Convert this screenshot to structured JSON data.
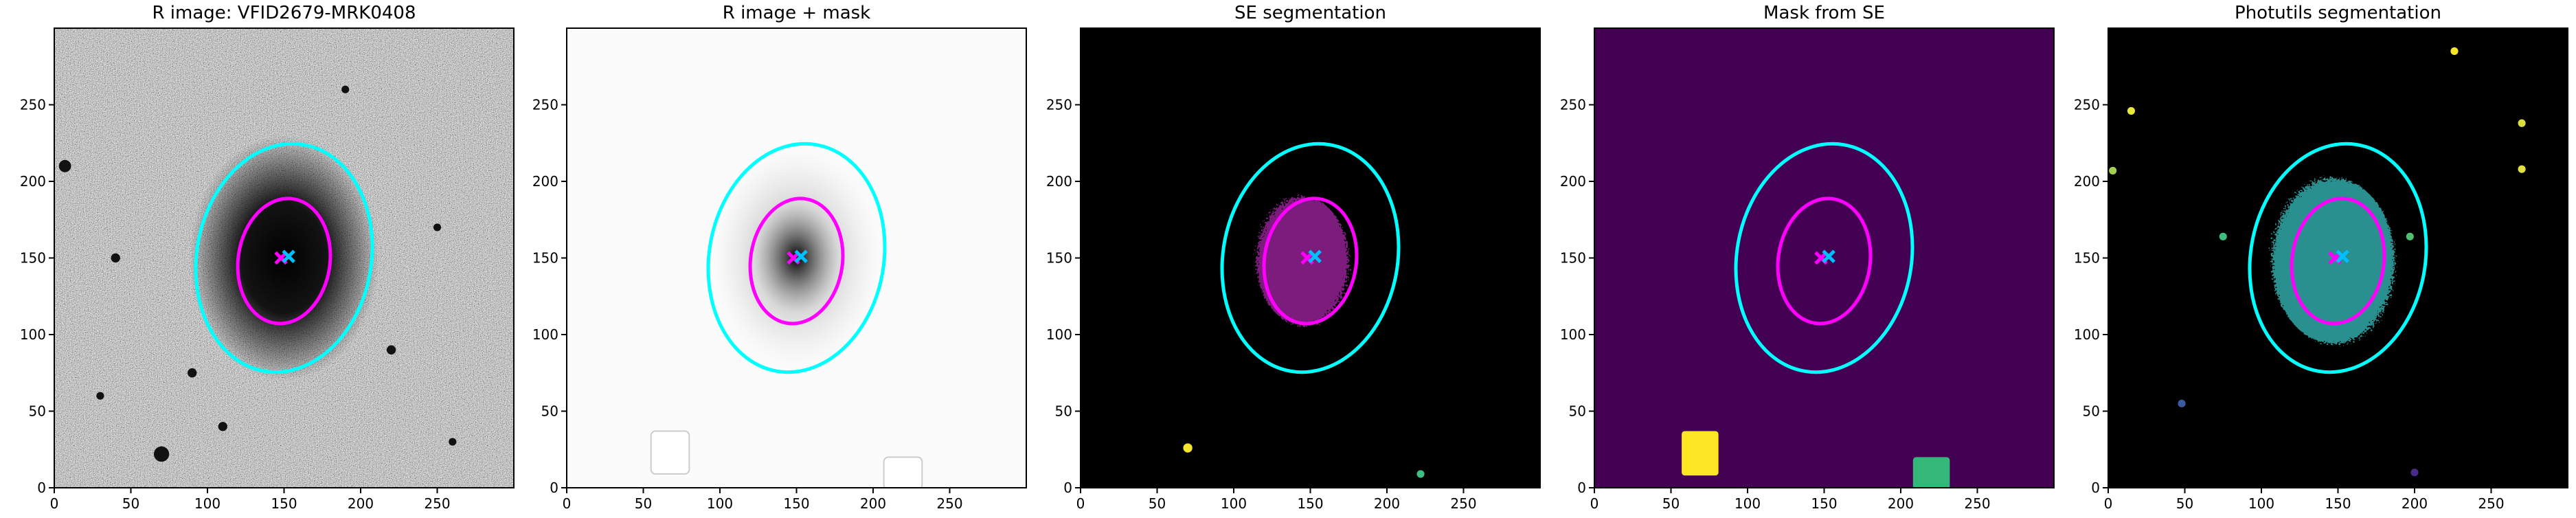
{
  "chart_data": [
    {
      "type": "image",
      "title": "R image: VFID2679-MRK0408",
      "xlim": [
        0,
        300
      ],
      "ylim": [
        0,
        300
      ],
      "xticks": [
        0,
        50,
        100,
        150,
        200,
        250
      ],
      "yticks": [
        0,
        50,
        100,
        150,
        200,
        250
      ],
      "ellipses": [
        {
          "cx": 150,
          "cy": 150,
          "width": 114,
          "height": 150,
          "angle": -10,
          "color": "#00ffff"
        },
        {
          "cx": 150,
          "cy": 148,
          "width": 60,
          "height": 82,
          "angle": -8,
          "color": "#ff00ff"
        }
      ],
      "markers": [
        {
          "x": 148,
          "y": 150,
          "color": "#ff00ff"
        },
        {
          "x": 153,
          "y": 151,
          "color": "#00bfff"
        }
      ]
    },
    {
      "type": "image",
      "title": "R image + mask",
      "xlim": [
        0,
        300
      ],
      "ylim": [
        0,
        300
      ],
      "xticks": [
        0,
        50,
        100,
        150,
        200,
        250
      ],
      "yticks": [
        0,
        50,
        100,
        150,
        200,
        250
      ],
      "ellipses": [
        {
          "cx": 150,
          "cy": 150,
          "width": 114,
          "height": 150,
          "angle": -10,
          "color": "#00ffff"
        },
        {
          "cx": 150,
          "cy": 148,
          "width": 60,
          "height": 82,
          "angle": -8,
          "color": "#ff00ff"
        }
      ],
      "markers": [
        {
          "x": 148,
          "y": 150,
          "color": "#ff00ff"
        },
        {
          "x": 153,
          "y": 151,
          "color": "#00bfff"
        }
      ]
    },
    {
      "type": "image",
      "title": "SE segmentation",
      "xlim": [
        0,
        300
      ],
      "ylim": [
        0,
        300
      ],
      "xticks": [
        0,
        50,
        100,
        150,
        200,
        250
      ],
      "yticks": [
        0,
        50,
        100,
        150,
        200,
        250
      ],
      "ellipses": [
        {
          "cx": 150,
          "cy": 150,
          "width": 114,
          "height": 150,
          "angle": -10,
          "color": "#00ffff"
        },
        {
          "cx": 150,
          "cy": 148,
          "width": 60,
          "height": 82,
          "angle": -8,
          "color": "#ff00ff"
        }
      ],
      "markers": [
        {
          "x": 148,
          "y": 150,
          "color": "#ff00ff"
        },
        {
          "x": 153,
          "y": 151,
          "color": "#00bfff"
        }
      ]
    },
    {
      "type": "image",
      "title": "Mask from SE",
      "xlim": [
        0,
        300
      ],
      "ylim": [
        0,
        300
      ],
      "xticks": [
        0,
        50,
        100,
        150,
        200,
        250
      ],
      "yticks": [
        0,
        50,
        100,
        150,
        200,
        250
      ],
      "ellipses": [
        {
          "cx": 150,
          "cy": 150,
          "width": 114,
          "height": 150,
          "angle": -10,
          "color": "#00ffff"
        },
        {
          "cx": 150,
          "cy": 148,
          "width": 60,
          "height": 82,
          "angle": -8,
          "color": "#ff00ff"
        }
      ],
      "markers": [
        {
          "x": 148,
          "y": 150,
          "color": "#ff00ff"
        },
        {
          "x": 153,
          "y": 151,
          "color": "#00bfff"
        }
      ]
    },
    {
      "type": "image",
      "title": "Photutils segmentation",
      "xlim": [
        0,
        300
      ],
      "ylim": [
        0,
        300
      ],
      "xticks": [
        0,
        50,
        100,
        150,
        200,
        250
      ],
      "yticks": [
        0,
        50,
        100,
        150,
        200,
        250
      ],
      "ellipses": [
        {
          "cx": 150,
          "cy": 150,
          "width": 114,
          "height": 150,
          "angle": -10,
          "color": "#00ffff"
        },
        {
          "cx": 150,
          "cy": 148,
          "width": 60,
          "height": 82,
          "angle": -8,
          "color": "#ff00ff"
        }
      ],
      "markers": [
        {
          "x": 148,
          "y": 150,
          "color": "#ff00ff"
        },
        {
          "x": 153,
          "y": 151,
          "color": "#00bfff"
        }
      ]
    }
  ]
}
